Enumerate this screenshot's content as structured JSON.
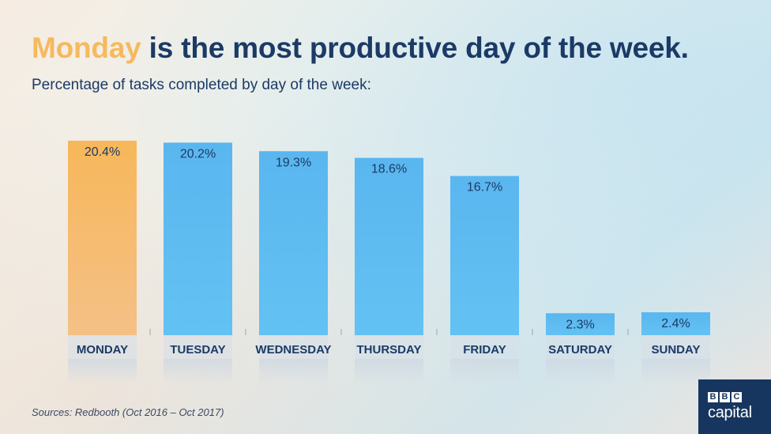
{
  "header": {
    "title_highlight": "Monday",
    "title_rest": " is the most productive day of the week.",
    "subtitle": "Percentage of tasks completed by day of the week:"
  },
  "footer": {
    "source": "Sources: Redbooth (Oct 2016 – Oct 2017)"
  },
  "brand": {
    "letters": [
      "B",
      "B",
      "C"
    ],
    "word": "capital"
  },
  "colors": {
    "highlight_bar": "#f6b95d",
    "bar": "#5bb8ee",
    "value_text": "#1b3a66",
    "category_text": "#1b3a66"
  },
  "chart_data": {
    "type": "bar",
    "categories": [
      "MONDAY",
      "TUESDAY",
      "WEDNESDAY",
      "THURSDAY",
      "FRIDAY",
      "SATURDAY",
      "SUNDAY"
    ],
    "values": [
      20.4,
      20.2,
      19.3,
      18.6,
      16.7,
      2.3,
      2.4
    ],
    "value_labels": [
      "20.4%",
      "20.2%",
      "19.3%",
      "18.6%",
      "16.7%",
      "2.3%",
      "2.4%"
    ],
    "highlight_index": 0,
    "ylim": [
      0,
      20.4
    ],
    "grid": false,
    "legend": "none"
  }
}
